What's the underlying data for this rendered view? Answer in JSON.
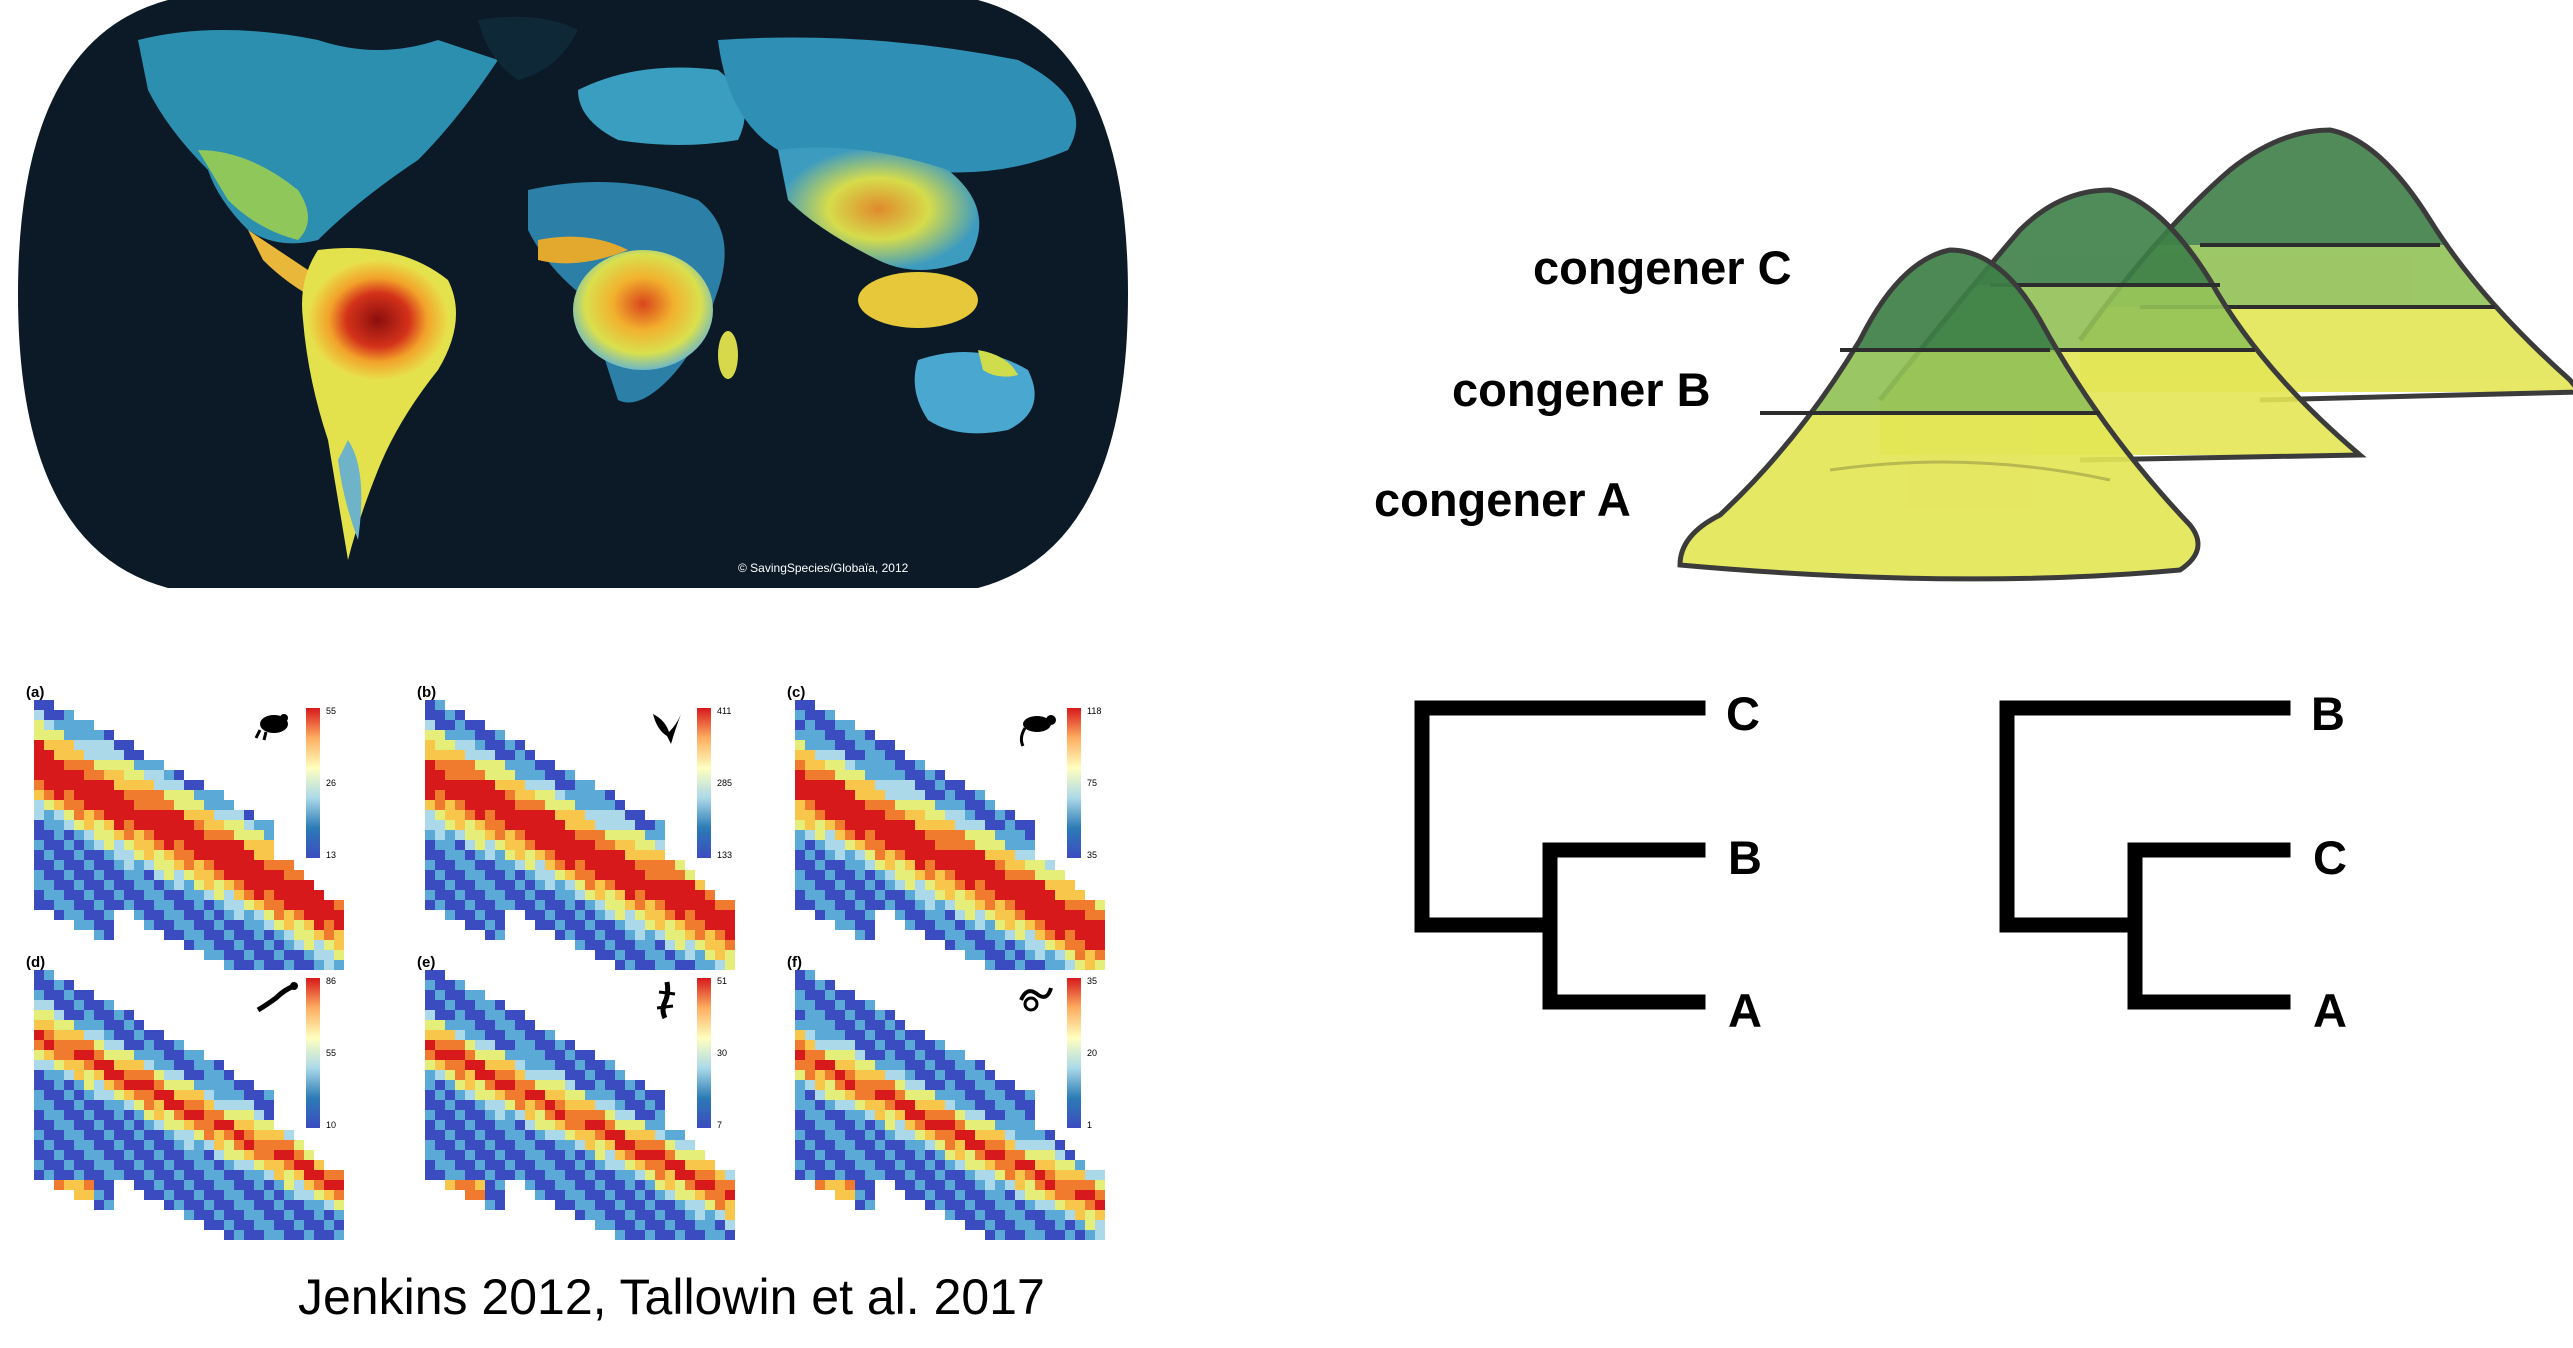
{
  "map": {
    "copyright": "© SavingSpecies/Globaïa, 2012"
  },
  "panels": [
    {
      "label": "(a)",
      "scale_max": "55",
      "scale_mid": "26",
      "scale_min": "13",
      "icon": "frog-icon"
    },
    {
      "label": "(b)",
      "scale_max": "411",
      "scale_mid": "285",
      "scale_min": "133",
      "icon": "bird-icon"
    },
    {
      "label": "(c)",
      "scale_max": "118",
      "scale_mid": "75",
      "scale_min": "35",
      "icon": "mammal-icon"
    },
    {
      "label": "(d)",
      "scale_max": "86",
      "scale_mid": "55",
      "scale_min": "10",
      "icon": "lizard-icon"
    },
    {
      "label": "(e)",
      "scale_max": "51",
      "scale_mid": "30",
      "scale_min": "7",
      "icon": "gecko-icon"
    },
    {
      "label": "(f)",
      "scale_max": "35",
      "scale_mid": "20",
      "scale_min": "1",
      "icon": "snake-icon"
    }
  ],
  "credit": "Jenkins 2012, Tallowin et al. 2017",
  "congeners": {
    "c": "congener C",
    "b": "congener B",
    "a": "congener A"
  },
  "tree_left": {
    "top": "C",
    "mid": "B",
    "bottom": "A"
  },
  "tree_right": {
    "top": "B",
    "mid": "C",
    "bottom": "A"
  },
  "colors": {
    "dark_green": "#3d7f47",
    "mid_green": "#93c257",
    "yellow": "#e3e655",
    "map_ocean": "#0b1a26"
  }
}
